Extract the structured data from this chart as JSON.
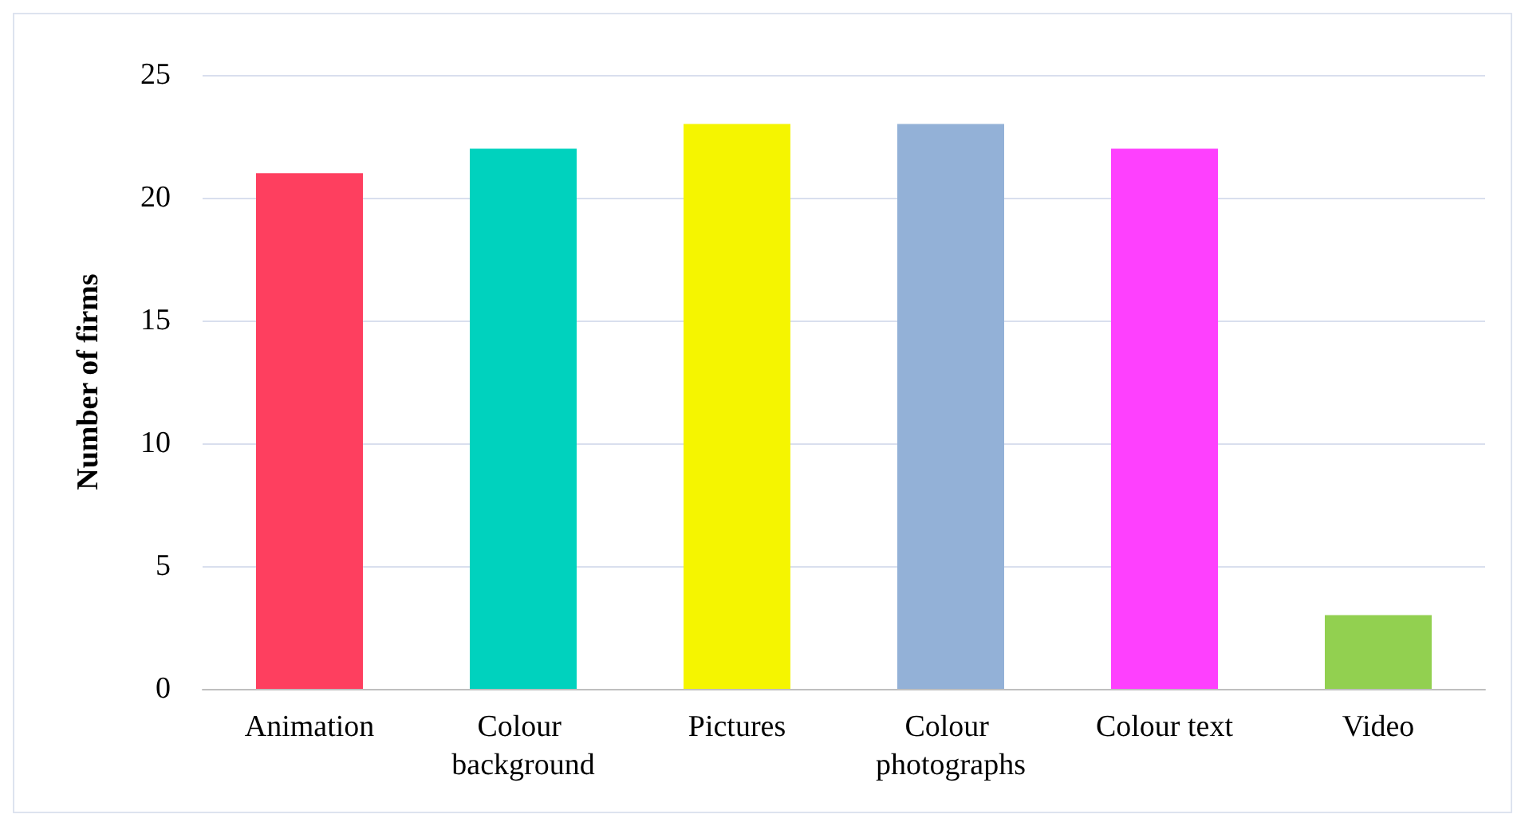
{
  "chart_data": {
    "type": "bar",
    "ylabel": "Number of firms",
    "categories": [
      "Animation",
      "Colour background",
      "Pictures",
      "Colour photographs",
      "Colour text",
      "Video"
    ],
    "values": [
      21,
      22,
      23,
      23,
      22,
      3
    ],
    "colors": [
      "#fe3f5f",
      "#00d2be",
      "#f5f500",
      "#93b1d7",
      "#fe40fe",
      "#92d050"
    ],
    "ylim": [
      0,
      25
    ],
    "yticks": [
      0,
      5,
      10,
      15,
      20,
      25
    ],
    "grid": "y"
  }
}
